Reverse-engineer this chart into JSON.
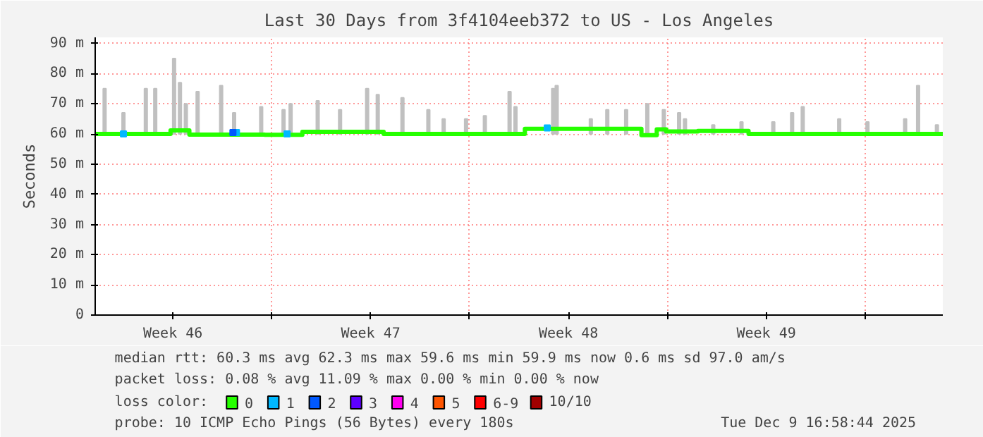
{
  "chart_data": {
    "type": "step",
    "title": "Last 30 Days from 3f4104eeb372 to US - Los Angeles",
    "ylabel": "Seconds",
    "xlim": [
      "2025-11-10T18:00",
      "2025-12-10T18:00"
    ],
    "ylim": [
      0,
      92
    ],
    "xticks": [
      {
        "value": "2025-11-13T12:00",
        "label": "Week 46"
      },
      {
        "value": "2025-11-17T00:00",
        "label": null
      },
      {
        "value": "2025-11-20T12:00",
        "label": "Week 47"
      },
      {
        "value": "2025-11-24T00:00",
        "label": null
      },
      {
        "value": "2025-11-27T12:00",
        "label": "Week 48"
      },
      {
        "value": "2025-12-01T00:00",
        "label": null
      },
      {
        "value": "2025-12-04T12:00",
        "label": "Week 49"
      },
      {
        "value": "2025-12-08T00:00",
        "label": null
      }
    ],
    "yticks": [
      0,
      {
        "value": 10,
        "label": "10 m"
      },
      {
        "value": 20,
        "label": "20 m"
      },
      {
        "value": 30,
        "label": "30 m"
      },
      {
        "value": 40,
        "label": "40 m"
      },
      {
        "value": 50,
        "label": "50 m"
      },
      {
        "value": 60,
        "label": "60 m"
      },
      {
        "value": 70,
        "label": "70 m"
      },
      {
        "value": 80,
        "label": "80 m"
      },
      {
        "value": 90,
        "label": "90 m"
      }
    ],
    "grid": true,
    "legend": "bottom",
    "legend_title": "loss color:",
    "series": [
      {
        "type": "bar",
        "color": "#c0c0c0",
        "x": [
          "2025-11-11T02:00",
          "2025-11-11T18:00",
          "2025-11-12T13:00",
          "2025-11-12T21:00",
          "2025-11-13T13:00",
          "2025-11-13T18:00",
          "2025-11-13T23:00",
          "2025-11-14T09:00",
          "2025-11-15T05:00",
          "2025-11-15T16:00",
          "2025-11-16T15:00",
          "2025-11-17T10:00",
          "2025-11-17T16:00",
          "2025-11-18T15:00",
          "2025-11-19T10:00",
          "2025-11-20T09:00",
          "2025-11-20T18:00",
          "2025-11-21T15:00",
          "2025-11-22T13:00",
          "2025-11-23T02:00",
          "2025-11-23T21:00",
          "2025-11-24T13:00",
          "2025-11-25T10:00",
          "2025-11-25T15:00",
          "2025-11-26T23:00",
          "2025-11-27T02:00",
          "2025-11-28T07:00",
          "2025-11-28T21:00",
          "2025-11-29T13:00",
          "2025-11-30T07:00",
          "2025-11-30T21:00",
          "2025-12-01T10:00",
          "2025-12-01T15:00",
          "2025-12-02T15:00",
          "2025-12-03T15:00",
          "2025-12-04T18:00",
          "2025-12-05T10:00",
          "2025-12-05T19:00",
          "2025-12-07T02:00",
          "2025-12-08T02:00",
          "2025-12-09T10:00",
          "2025-12-09T21:00",
          "2025-12-10T13:00"
        ],
        "base": [
          60,
          60,
          60,
          60,
          60,
          60,
          60,
          60,
          60,
          60,
          60,
          60,
          60,
          60,
          60,
          60,
          60,
          60,
          60,
          60,
          60,
          60,
          60,
          60,
          60,
          60,
          60,
          60,
          60,
          60,
          60,
          60,
          60,
          60,
          60,
          60,
          60,
          60,
          60,
          60,
          60,
          60,
          60
        ],
        "values": [
          15,
          7,
          15,
          15,
          25,
          17,
          10,
          14,
          16,
          7,
          9,
          8,
          10,
          11,
          8,
          15,
          13,
          12,
          8,
          5,
          5,
          6,
          14,
          9,
          15,
          16,
          5,
          8,
          8,
          10,
          8,
          7,
          5,
          3,
          4,
          4,
          7,
          9,
          5,
          4,
          5,
          16,
          3
        ]
      },
      {
        "name": "0",
        "color": "#26ff00",
        "x": [
          "2025-11-10T18:00",
          "2025-11-13T10:00",
          "2025-11-14T02:00",
          "2025-11-16T18:00",
          "2025-11-18T02:00",
          "2025-11-20T23:00",
          "2025-11-25T23:00",
          "2025-11-30T02:00",
          "2025-11-30T15:00",
          "2025-11-30T23:00",
          "2025-12-02T02:00",
          "2025-12-03T21:00",
          "2025-12-10T18:00"
        ],
        "values": [
          60,
          61.2,
          59.8,
          59.7,
          60.7,
          60,
          61.7,
          59.6,
          61.5,
          60.8,
          61,
          60,
          60
        ]
      },
      {
        "type": "scatter",
        "name": "1",
        "color": "#00b8ff",
        "x": [
          "2025-11-11T18:00",
          "2025-11-15T18:00",
          "2025-11-17T13:00",
          "2025-11-26T18:00"
        ],
        "values": [
          60,
          60.5,
          60,
          62
        ]
      },
      {
        "type": "scatter",
        "name": "2",
        "color": "#0059ff",
        "x": [
          "2025-11-15T15:00"
        ],
        "values": [
          60.5
        ]
      },
      {
        "type": "scatter",
        "name": "3",
        "color": "#5e00ff"
      },
      {
        "type": "scatter",
        "name": "4",
        "color": "#ff00f0"
      },
      {
        "type": "scatter",
        "name": "5",
        "color": "#ff5500"
      },
      {
        "type": "scatter",
        "name": "6-9",
        "color": "#ff0000"
      },
      {
        "type": "scatter",
        "name": "10/10",
        "color": "#a10000"
      }
    ],
    "annotations": [
      "median rtt:  60.3 ms avg  62.3 ms max  59.6 ms min  59.9 ms now  0.6 ms sd  97.0   am/s",
      "packet loss: 0.08 % avg  11.09 % max  0.00 % min  0.00 % now",
      "probe:       10 ICMP Echo Pings (56 Bytes) every 180s",
      "Tue Dec  9 16:58:44 2025"
    ]
  }
}
